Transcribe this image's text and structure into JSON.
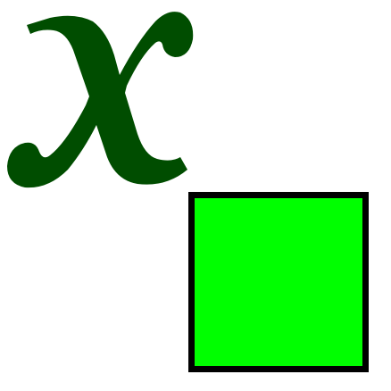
{
  "symbol": {
    "text": "x",
    "color": "#004d00",
    "icon": "italic-x-glyph"
  },
  "square": {
    "fill": "#00ff00",
    "border": "#000000",
    "icon": "green-square"
  }
}
